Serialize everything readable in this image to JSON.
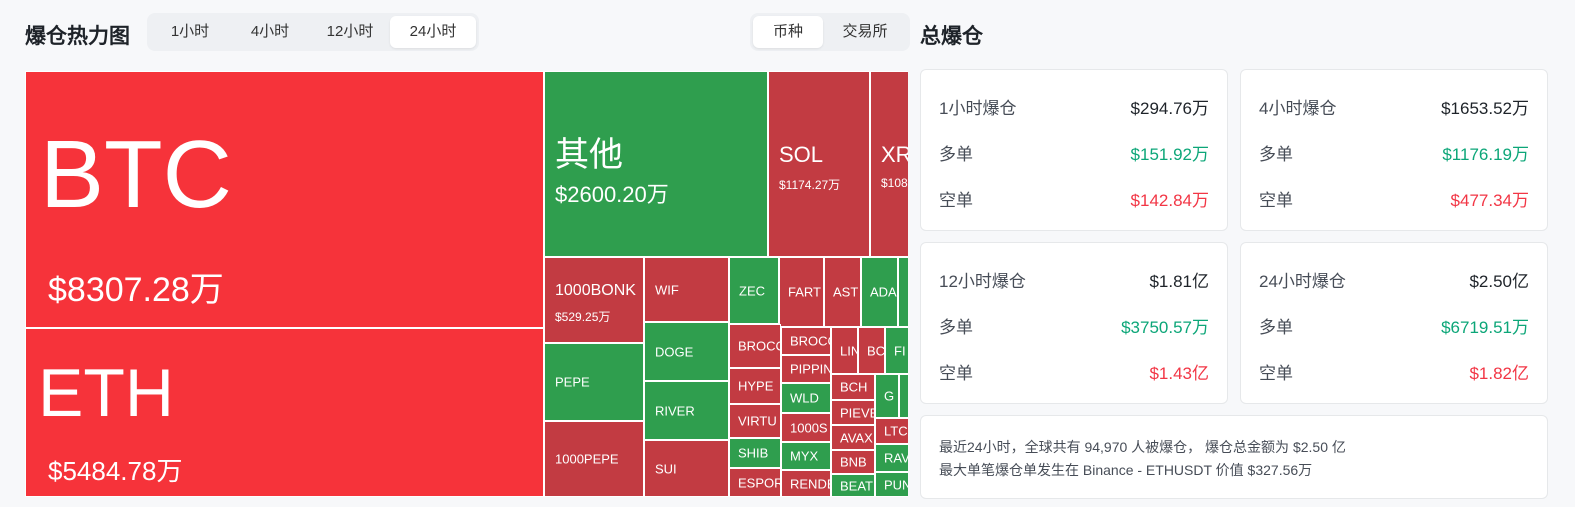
{
  "heatmap": {
    "title": "爆仓热力图",
    "time_options": [
      "1小时",
      "4小时",
      "12小时",
      "24小时"
    ],
    "time_selected": "24小时",
    "view_options": [
      "币种",
      "交易所"
    ],
    "view_selected": "币种",
    "tiles": {
      "btc": {
        "symbol": "BTC",
        "value": "$8307.28万"
      },
      "eth": {
        "symbol": "ETH",
        "value": "$5484.78万"
      },
      "other": {
        "symbol": "其他",
        "value": "$2600.20万"
      },
      "sol": {
        "symbol": "SOL",
        "value": "$1174.27万"
      },
      "xrp": {
        "symbol": "XR",
        "value": "$108"
      },
      "bonk": {
        "symbol": "1000BONK",
        "value": "$529.25万"
      },
      "wif": {
        "symbol": "WIF"
      },
      "zec": {
        "symbol": "ZEC"
      },
      "fart": {
        "symbol": "FART"
      },
      "ast": {
        "symbol": "AST"
      },
      "ada": {
        "symbol": "ADA"
      },
      "pepe": {
        "symbol": "PEPE"
      },
      "doge": {
        "symbol": "DOGE"
      },
      "brocc1": {
        "symbol": "BROCC"
      },
      "brocc2": {
        "symbol": "BROCC"
      },
      "lin": {
        "symbol": "LIN"
      },
      "bc": {
        "symbol": "BC"
      },
      "fi": {
        "symbol": "FI"
      },
      "pippin": {
        "symbol": "PIPPIN"
      },
      "hype": {
        "symbol": "HYPE"
      },
      "bch": {
        "symbol": "BCH"
      },
      "g": {
        "symbol": "G"
      },
      "wld": {
        "symbol": "WLD"
      },
      "river": {
        "symbol": "RIVER"
      },
      "virtu": {
        "symbol": "VIRTU"
      },
      "pieve": {
        "symbol": "PIEVE"
      },
      "sats": {
        "symbol": "1000S"
      },
      "avax": {
        "symbol": "AVAX"
      },
      "ltc": {
        "symbol": "LTC"
      },
      "shib": {
        "symbol": "SHIB"
      },
      "myx": {
        "symbol": "MYX"
      },
      "bnb": {
        "symbol": "BNB"
      },
      "rav": {
        "symbol": "RAV"
      },
      "pepe1000": {
        "symbol": "1000PEPE"
      },
      "sui": {
        "symbol": "SUI"
      },
      "espor": {
        "symbol": "ESPOR"
      },
      "rend": {
        "symbol": "RENDE"
      },
      "beat": {
        "symbol": "BEAT"
      },
      "pun": {
        "symbol": "PUN"
      }
    }
  },
  "totals": {
    "title": "总爆仓",
    "cards": {
      "h1": {
        "label": "1小时爆仓",
        "total": "$294.76万",
        "long_label": "多单",
        "long": "$151.92万",
        "short_label": "空单",
        "short": "$142.84万"
      },
      "h4": {
        "label": "4小时爆仓",
        "total": "$1653.52万",
        "long_label": "多单",
        "long": "$1176.19万",
        "short_label": "空单",
        "short": "$477.34万"
      },
      "h12": {
        "label": "12小时爆仓",
        "total": "$1.81亿",
        "long_label": "多单",
        "long": "$3750.57万",
        "short_label": "空单",
        "short": "$1.43亿"
      },
      "h24": {
        "label": "24小时爆仓",
        "total": "$2.50亿",
        "long_label": "多单",
        "long": "$6719.51万",
        "short_label": "空单",
        "short": "$1.82亿"
      }
    },
    "summary_line1": "最近24小时，全球共有 94,970 人被爆仓， 爆仓总金额为 $2.50 亿",
    "summary_line2": "最大单笔爆仓单发生在 Binance - ETHUSDT 价值 $327.56万"
  },
  "colors": {
    "long": "#0ca678",
    "short": "#f23645",
    "tile_red": "#f6333a",
    "tile_dark_red": "#c23b42",
    "tile_green": "#2f9e4e"
  }
}
